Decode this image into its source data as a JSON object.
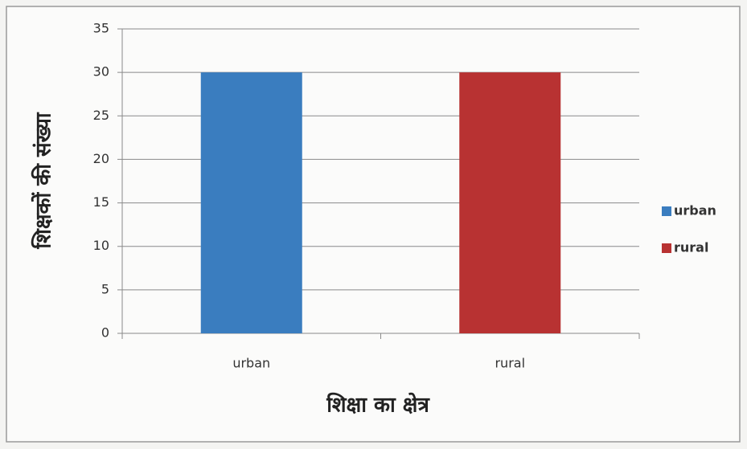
{
  "chart_data": {
    "type": "bar",
    "xlabel": "शिक्षा का क्षेत्र",
    "ylabel": "शिक्षकों की संख्या",
    "categories": [
      "urban",
      "rural"
    ],
    "series": [
      {
        "name": "urban",
        "color": "#3a7dbf",
        "values": [
          30,
          null
        ]
      },
      {
        "name": "rural",
        "color": "#b83232",
        "values": [
          null,
          30
        ]
      }
    ],
    "ylim": [
      0,
      35
    ],
    "yticks": [
      0,
      5,
      10,
      15,
      20,
      25,
      30,
      35
    ],
    "grid": true,
    "legend": "right"
  }
}
